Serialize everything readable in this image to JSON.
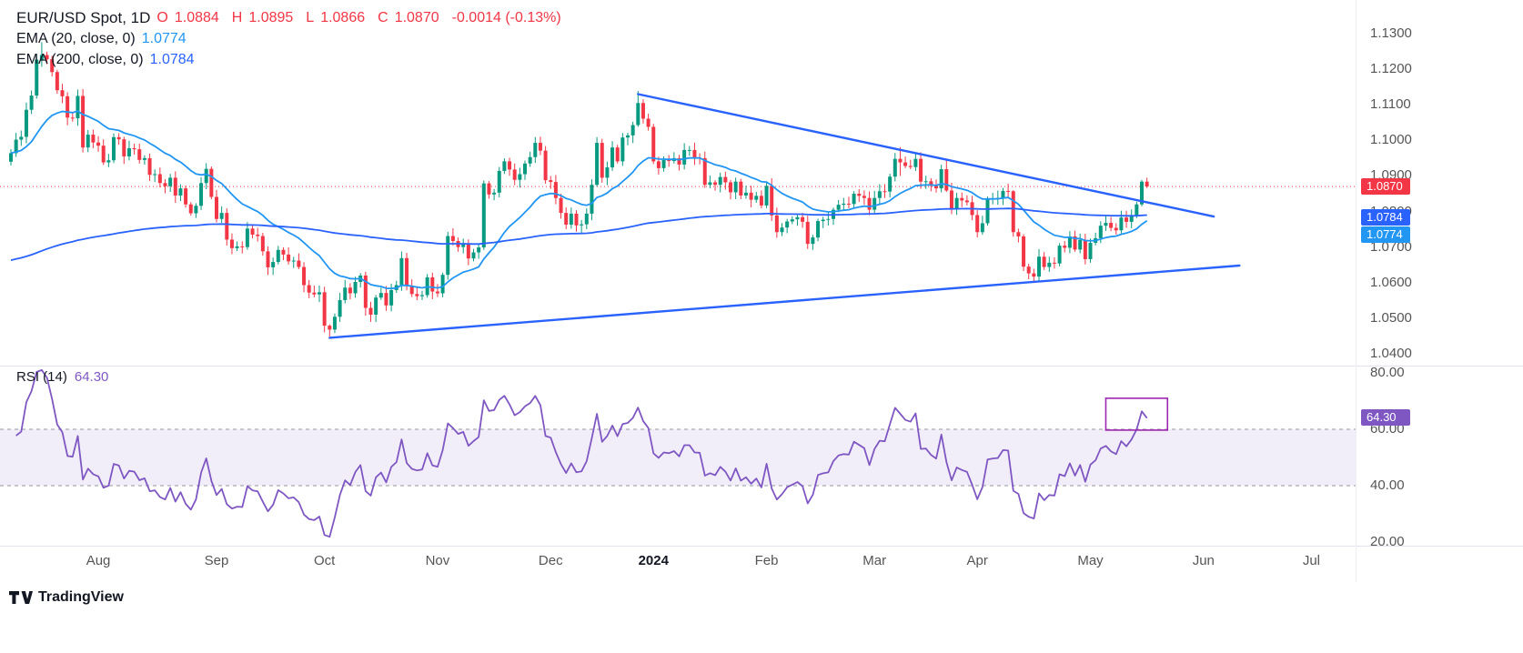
{
  "legend": {
    "symbol": "EUR/USD Spot, 1D",
    "ohlc": {
      "o_key": "O",
      "o_val": "1.0884",
      "h_key": "H",
      "h_val": "1.0895",
      "l_key": "L",
      "l_val": "1.0866",
      "c_key": "C",
      "c_val": "1.0870",
      "change": "-0.0014 (-0.13%)"
    },
    "ema20": {
      "label": "EMA (20, close, 0)",
      "value": "1.0774"
    },
    "ema200": {
      "label": "EMA (200, close, 0)",
      "value": "1.0784"
    },
    "rsi": {
      "label": "RSI (14)",
      "value": "64.30"
    }
  },
  "footer": {
    "brand": "TradingView"
  },
  "colors": {
    "up": "#089981",
    "down": "#f23645",
    "ema20": "#2196f3",
    "ema200": "#2962ff",
    "trendline": "#2962ff",
    "price_line": "#f23645",
    "rsi": "#7e57c2",
    "rsi_band_fill": "rgba(126,87,194,0.10)",
    "rsi_band_edge": "#9598a1",
    "highlight_box": "#9c27b0"
  },
  "chart_data": [
    {
      "type": "candlestick",
      "symbol": "EUR/USD Spot",
      "interval": "1D",
      "last": {
        "open": 1.0884,
        "high": 1.0895,
        "low": 1.0866,
        "close": 1.087,
        "change": -0.0014,
        "change_pct": -0.13
      },
      "first_open": 1.094,
      "close": [
        1.0964,
        1.1002,
        1.101,
        1.1086,
        1.1126,
        1.1227,
        1.124,
        1.1228,
        1.1192,
        1.1141,
        1.1124,
        1.1064,
        1.1062,
        1.1125,
        1.098,
        1.1016,
        1.0994,
        1.0985,
        1.0938,
        1.0944,
        1.1009,
        1.1003,
        1.0955,
        1.0978,
        1.0975,
        1.0945,
        1.095,
        1.0903,
        1.0905,
        1.088,
        1.0871,
        1.0895,
        1.0845,
        1.0865,
        1.082,
        1.0795,
        1.0816,
        1.088,
        1.092,
        1.0841,
        1.0779,
        1.0796,
        1.0721,
        1.0697,
        1.0702,
        1.07,
        1.0752,
        1.0735,
        1.0731,
        1.0688,
        1.0643,
        1.0658,
        1.0692,
        1.0679,
        1.066,
        1.0662,
        1.0644,
        1.0593,
        1.0572,
        1.0567,
        1.0573,
        1.0479,
        1.0468,
        1.0504,
        1.0551,
        1.0586,
        1.057,
        1.0602,
        1.062,
        1.0529,
        1.051,
        1.0558,
        1.0571,
        1.0536,
        1.0579,
        1.0593,
        1.0669,
        1.059,
        1.0568,
        1.0562,
        1.0565,
        1.0615,
        1.0575,
        1.057,
        1.0622,
        1.0731,
        1.0717,
        1.07,
        1.0708,
        1.0668,
        1.0685,
        1.0699,
        1.0879,
        1.0848,
        1.0853,
        1.0914,
        1.0941,
        1.0918,
        1.0889,
        1.0905,
        1.0935,
        1.0953,
        1.0993,
        1.0971,
        1.0888,
        1.0883,
        1.0838,
        1.0796,
        1.0763,
        1.0794,
        1.0761,
        1.0764,
        1.0794,
        1.0875,
        1.0993,
        1.0895,
        1.0924,
        1.098,
        1.0941,
        1.1008,
        1.1014,
        1.1043,
        1.1105,
        1.1061,
        1.1038,
        1.0941,
        1.0922,
        1.0945,
        1.0942,
        1.095,
        1.0932,
        1.0973,
        1.0973,
        1.0951,
        1.095,
        1.0875,
        1.0882,
        1.0875,
        1.0897,
        1.0882,
        1.0854,
        1.0884,
        1.0845,
        1.0853,
        1.0833,
        1.0844,
        1.0817,
        1.0872,
        1.0789,
        1.0742,
        1.0755,
        1.0772,
        1.0778,
        1.0784,
        1.0771,
        1.0709,
        1.0727,
        1.0773,
        1.0777,
        1.0779,
        1.0805,
        1.0819,
        1.0822,
        1.0821,
        1.085,
        1.0844,
        1.0838,
        1.0805,
        1.0838,
        1.0857,
        1.0856,
        1.0898,
        1.0948,
        1.0938,
        1.0928,
        1.0925,
        1.0948,
        1.0884,
        1.0885,
        1.0872,
        1.0865,
        1.0919,
        1.0859,
        1.0808,
        1.0838,
        1.0831,
        1.0826,
        1.079,
        1.0742,
        1.0767,
        1.0834,
        1.0837,
        1.0838,
        1.0858,
        1.0857,
        1.0742,
        1.073,
        1.0645,
        1.0626,
        1.0617,
        1.0673,
        1.0644,
        1.0656,
        1.0654,
        1.0704,
        1.0698,
        1.073,
        1.0693,
        1.072,
        1.0666,
        1.0712,
        1.0725,
        1.076,
        1.0768,
        1.0754,
        1.0747,
        1.0783,
        1.0771,
        1.079,
        1.082,
        1.0884,
        1.087
      ],
      "wick_overrides": {
        "6": [
          1.1227,
          1.1276,
          1.1207,
          1.124
        ],
        "14": [
          1.1125,
          1.1144,
          1.0966,
          1.098
        ],
        "62": [
          1.0479,
          1.0483,
          1.0448,
          1.0468
        ],
        "92": [
          1.0699,
          1.0887,
          1.0692,
          1.0879
        ],
        "114": [
          1.0875,
          1.1009,
          1.087,
          1.0993
        ],
        "122": [
          1.1043,
          1.1139,
          1.1038,
          1.1105
        ],
        "173": [
          1.0948,
          1.0981,
          1.09,
          1.0938
        ],
        "182": [
          1.0919,
          1.0945,
          1.0855,
          1.0859
        ],
        "195": [
          1.0857,
          1.086,
          1.0729,
          1.0742
        ],
        "199": [
          1.0626,
          1.0639,
          1.0601,
          1.0617
        ],
        "220": [
          1.082,
          1.0889,
          1.0815,
          1.0884
        ],
        "221": [
          1.0884,
          1.0895,
          1.0866,
          1.087
        ]
      },
      "overlays": [
        {
          "kind": "ema",
          "period": 20,
          "current": 1.0774,
          "color_key": "ema20"
        },
        {
          "kind": "ema",
          "period": 200,
          "current": 1.0784,
          "color_key": "ema200",
          "seed": 1.066
        }
      ],
      "trendlines": [
        {
          "name": "descending-trendline",
          "i1": 122,
          "p1": 1.113,
          "i2": 234,
          "p2": 1.0786
        },
        {
          "name": "ascending-trendline",
          "i1": 62,
          "p1": 1.0445,
          "i2": 239,
          "p2": 1.0648
        }
      ],
      "price_line": {
        "value": 1.087
      },
      "x_axis": {
        "ticks": [
          {
            "label": "Aug",
            "index": 17
          },
          {
            "label": "Sep",
            "index": 40
          },
          {
            "label": "Oct",
            "index": 61
          },
          {
            "label": "Nov",
            "index": 83
          },
          {
            "label": "Dec",
            "index": 105
          },
          {
            "label": "2024",
            "index": 125,
            "bold": true
          },
          {
            "label": "Feb",
            "index": 147
          },
          {
            "label": "Mar",
            "index": 168
          },
          {
            "label": "Apr",
            "index": 188
          },
          {
            "label": "May",
            "index": 210
          },
          {
            "label": "Jun",
            "index": 232
          },
          {
            "label": "Jul",
            "index": 253
          }
        ]
      },
      "y_axis": {
        "range": [
          1.04,
          1.13
        ],
        "ticks": [
          1.13,
          1.12,
          1.11,
          1.1,
          1.09,
          1.08,
          1.07,
          1.06,
          1.05,
          1.04
        ],
        "tags": [
          {
            "name": "last-price-tag",
            "label": "1.0870",
            "value": 1.087,
            "color": "#f23645"
          },
          {
            "name": "ema200-price-tag",
            "label": "1.0784",
            "value": 1.0784,
            "color": "#2962ff"
          },
          {
            "name": "ema20-price-tag",
            "label": "1.0774",
            "value": 1.0774,
            "color": "#2196f3"
          }
        ]
      }
    },
    {
      "type": "line",
      "name": "RSI (14)",
      "period": 14,
      "current": 64.3,
      "band": [
        40,
        60
      ],
      "y_axis": {
        "range": [
          17,
          82
        ],
        "ticks": [
          80,
          60,
          40,
          20
        ],
        "tag": {
          "name": "rsi-value-tag",
          "label": "64.30",
          "value": 64.3,
          "color": "#7e57c2"
        }
      },
      "highlight_box": {
        "i1": 213,
        "v1": 71.0,
        "i2": 225,
        "v2": 59.7
      }
    }
  ]
}
